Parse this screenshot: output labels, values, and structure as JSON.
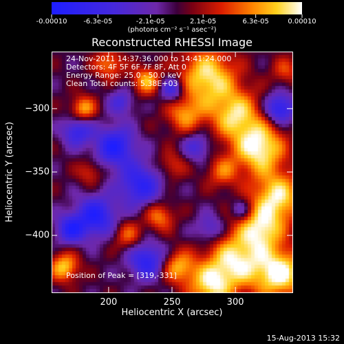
{
  "colorbar": {
    "tick_labels": [
      "-0.00010",
      "-6.3e-05",
      "-2.1e-05",
      "2.1e-05",
      "6.3e-05",
      "0.00010"
    ],
    "units": "(photons cm⁻² s⁻¹ asec⁻²)",
    "range": [
      -0.0001,
      0.0001
    ]
  },
  "info": {
    "line1": "24-Nov-2011 14:37:36.000 to 14:41:24.000",
    "line2": "Detectors: 4F 5F 6F 7F 8F, Att 0",
    "line3": "Energy Range: 25.0 - 50.0 keV",
    "line4": "Clean     Total counts: 5.38E+03",
    "peak": "Position of Peak = [319,-331]"
  },
  "footer_date": "15-Aug-2013 15:32",
  "chart_data": {
    "type": "heatmap",
    "title": "Reconstructed RHESSI Image",
    "xlabel": "Heliocentric X (arcsec)",
    "ylabel": "Heliocentric Y (arcsec)",
    "xlim": [
      155,
      345
    ],
    "ylim": [
      -445,
      -255
    ],
    "xticks": [
      200,
      250,
      300
    ],
    "yticks": [
      -300,
      -350,
      -400
    ],
    "colormap": "rainbow/thermal: blue (negative) - purple - red - orange - yellow - white (positive)",
    "peak_position": [
      319,
      -331
    ],
    "sources": [
      {
        "x": 180,
        "y": -300,
        "amp": 7e-05,
        "r": 7
      },
      {
        "x": 278,
        "y": -275,
        "amp": 9e-05,
        "r": 16
      },
      {
        "x": 300,
        "y": -305,
        "amp": 8e-05,
        "r": 14
      },
      {
        "x": 260,
        "y": -305,
        "amp": 6e-05,
        "r": 10
      },
      {
        "x": 230,
        "y": -278,
        "amp": 7e-05,
        "r": 8
      },
      {
        "x": 319,
        "y": -331,
        "amp": 0.0001,
        "r": 14
      },
      {
        "x": 333,
        "y": -370,
        "amp": 9e-05,
        "r": 14
      },
      {
        "x": 320,
        "y": -395,
        "amp": 8e-05,
        "r": 12
      },
      {
        "x": 300,
        "y": -420,
        "amp": 9e-05,
        "r": 16
      },
      {
        "x": 335,
        "y": -430,
        "amp": 0.0001,
        "r": 14
      },
      {
        "x": 280,
        "y": -440,
        "amp": 8e-05,
        "r": 12
      },
      {
        "x": 255,
        "y": -425,
        "amp": 7e-05,
        "r": 9
      },
      {
        "x": 240,
        "y": -385,
        "amp": 6e-05,
        "r": 8
      },
      {
        "x": 250,
        "y": -345,
        "amp": 4e-05,
        "r": 8
      },
      {
        "x": 290,
        "y": -350,
        "amp": 5e-05,
        "r": 9
      },
      {
        "x": 185,
        "y": -350,
        "amp": 4e-05,
        "r": 7
      },
      {
        "x": 215,
        "y": -400,
        "amp": 5e-05,
        "r": 8
      },
      {
        "x": 165,
        "y": -425,
        "amp": 8e-05,
        "r": 8
      },
      {
        "x": 200,
        "y": -265,
        "amp": 6e-05,
        "r": 8
      },
      {
        "x": 340,
        "y": -270,
        "amp": 4e-05,
        "r": 8
      },
      {
        "x": 175,
        "y": -318,
        "amp": -7e-05,
        "r": 8
      },
      {
        "x": 205,
        "y": -330,
        "amp": -9e-05,
        "r": 11
      },
      {
        "x": 225,
        "y": -360,
        "amp": -8e-05,
        "r": 12
      },
      {
        "x": 190,
        "y": -385,
        "amp": -9e-05,
        "r": 11
      },
      {
        "x": 170,
        "y": -395,
        "amp": -8e-05,
        "r": 8
      },
      {
        "x": 230,
        "y": -420,
        "amp": -8e-05,
        "r": 10
      },
      {
        "x": 250,
        "y": -285,
        "amp": -7e-05,
        "r": 7
      },
      {
        "x": 335,
        "y": -300,
        "amp": -9e-05,
        "r": 8
      },
      {
        "x": 280,
        "y": -395,
        "amp": -5e-05,
        "r": 8
      },
      {
        "x": 270,
        "y": -330,
        "amp": -5e-05,
        "r": 8
      },
      {
        "x": 210,
        "y": -295,
        "amp": -5e-05,
        "r": 7
      },
      {
        "x": 305,
        "y": -380,
        "amp": -4e-05,
        "r": 6
      }
    ]
  }
}
